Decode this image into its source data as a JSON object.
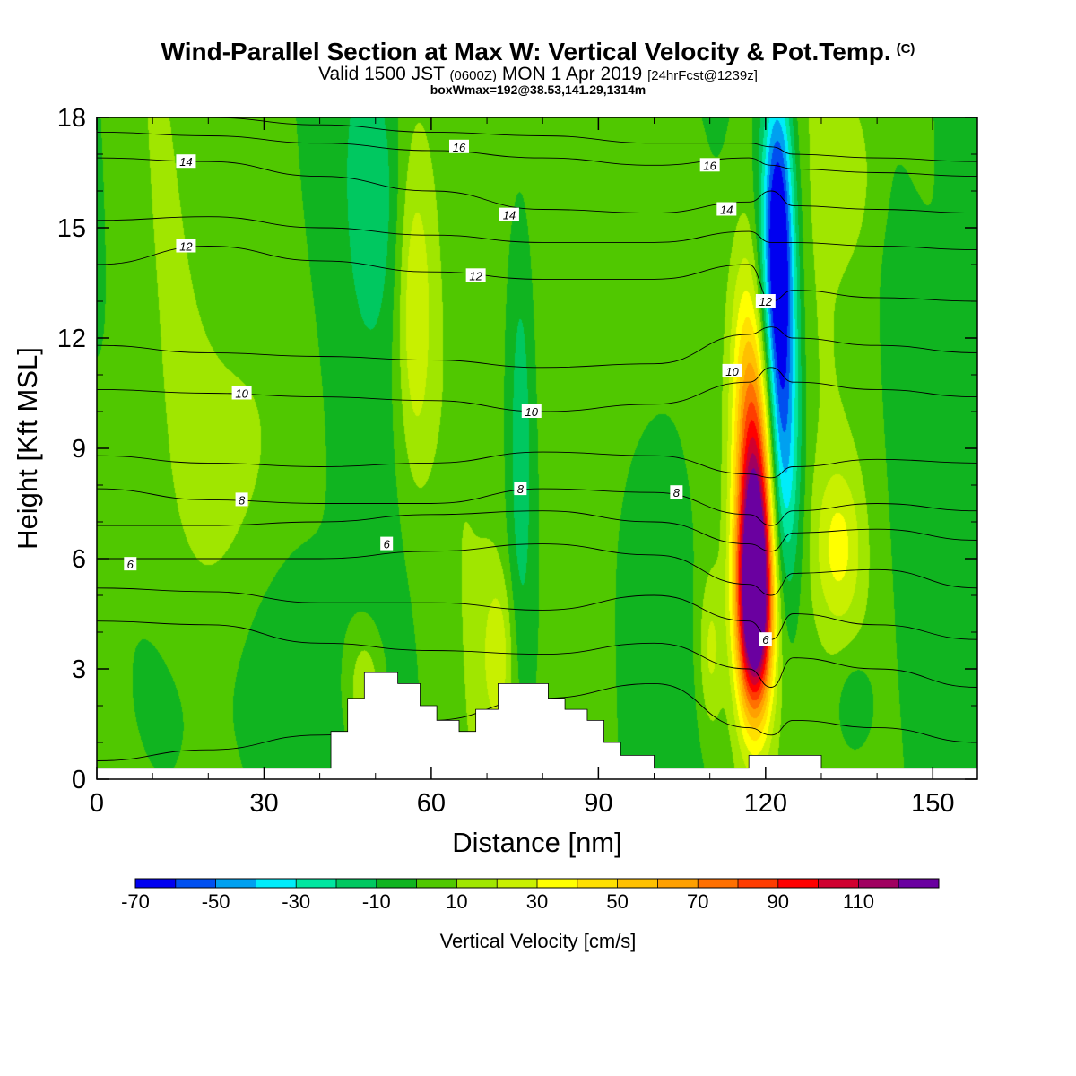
{
  "header": {
    "title": "Wind-Parallel Section at Max W: Vertical Velocity & Pot.Temp.",
    "copyright_mark": "(C)",
    "subtitle_main": "Valid 1500 JST",
    "subtitle_utc": "(0600Z)",
    "subtitle_date": "MON 1 Apr 2019",
    "subtitle_fcst": "[24hrFcst@1239z]",
    "subtitle2": "boxWmax=192@38.53,141.29,1314m"
  },
  "chart_data": {
    "type": "heatmap",
    "title": "Wind-Parallel Section at Max W: Vertical Velocity & Pot.Temp.",
    "xlabel": "Distance [nm]",
    "ylabel": "Height [Kft MSL]",
    "xlim": [
      0,
      158
    ],
    "ylim": [
      0,
      18
    ],
    "xticks": [
      0,
      30,
      60,
      90,
      120,
      150
    ],
    "yticks": [
      0,
      3,
      6,
      9,
      12,
      15,
      18
    ],
    "colorbar": {
      "title": "Vertical Velocity [cm/s]",
      "tick_labels": [
        "-70",
        "-50",
        "-30",
        "-10",
        "10",
        "30",
        "50",
        "70",
        "90",
        "110"
      ],
      "boundaries": [
        -70,
        -60,
        -50,
        -40,
        -30,
        -20,
        -10,
        0,
        10,
        20,
        30,
        40,
        50,
        60,
        70,
        80,
        90,
        100,
        110,
        120
      ],
      "colors": [
        "#0000f0",
        "#0050f0",
        "#00a0f0",
        "#00ecfa",
        "#00e6a0",
        "#00c860",
        "#10b420",
        "#50c800",
        "#a0e600",
        "#c8f000",
        "#ffff00",
        "#ffe000",
        "#ffc000",
        "#ffa000",
        "#ff7000",
        "#ff3c00",
        "#ff0000",
        "#d00030",
        "#a00060",
        "#6a00a0"
      ]
    },
    "contour_labels": [
      {
        "value": "14",
        "x": 16,
        "y": 16.8
      },
      {
        "value": "16",
        "x": 65,
        "y": 17.2
      },
      {
        "value": "16",
        "x": 110,
        "y": 16.7
      },
      {
        "value": "14",
        "x": 74,
        "y": 15.35
      },
      {
        "value": "14",
        "x": 113,
        "y": 15.5
      },
      {
        "value": "12",
        "x": 16,
        "y": 14.5
      },
      {
        "value": "12",
        "x": 68,
        "y": 13.7
      },
      {
        "value": "12",
        "x": 120,
        "y": 13.0
      },
      {
        "value": "10",
        "x": 26,
        "y": 10.5
      },
      {
        "value": "10",
        "x": 78,
        "y": 10.0
      },
      {
        "value": "10",
        "x": 114,
        "y": 11.1
      },
      {
        "value": "8",
        "x": 26,
        "y": 7.6
      },
      {
        "value": "8",
        "x": 76,
        "y": 7.9
      },
      {
        "value": "8",
        "x": 104,
        "y": 7.8
      },
      {
        "value": "6",
        "x": 6,
        "y": 5.85
      },
      {
        "value": "6",
        "x": 52,
        "y": 6.4
      },
      {
        "value": "6",
        "x": 120,
        "y": 3.8
      }
    ],
    "terrain_profile": {
      "x": [
        0,
        42,
        42,
        45,
        45,
        48,
        48,
        54,
        54,
        58,
        58,
        61,
        61,
        65,
        65,
        68,
        68,
        72,
        72,
        81,
        81,
        84,
        84,
        88,
        88,
        91,
        91,
        94,
        94,
        100,
        100,
        117,
        117,
        130,
        130,
        158
      ],
      "y": [
        0.3,
        0.3,
        1.3,
        1.3,
        2.2,
        2.2,
        2.9,
        2.9,
        2.6,
        2.6,
        2.0,
        2.0,
        1.6,
        1.6,
        1.3,
        1.3,
        1.9,
        1.9,
        2.6,
        2.6,
        2.2,
        2.2,
        1.9,
        1.9,
        1.6,
        1.6,
        1.0,
        1.0,
        0.65,
        0.65,
        0.3,
        0.3,
        0.65,
        0.65,
        0.3,
        0.3
      ]
    },
    "theta_contours": [
      {
        "value": 2,
        "x": [
          0,
          20,
          40,
          60,
          80,
          100,
          117,
          121,
          125,
          140,
          158
        ],
        "y": [
          0.5,
          0.8,
          1.2,
          1.6,
          2.2,
          2.6,
          1.4,
          1.2,
          1.6,
          1.4,
          1.0
        ]
      },
      {
        "value": 4,
        "x": [
          0,
          20,
          40,
          60,
          80,
          100,
          117,
          121,
          125,
          140,
          158
        ],
        "y": [
          4.3,
          4.2,
          3.7,
          3.5,
          3.4,
          3.7,
          3.0,
          2.5,
          3.3,
          3.0,
          2.5
        ]
      },
      {
        "value": 5,
        "x": [
          0,
          20,
          40,
          60,
          80,
          100,
          117,
          121,
          125,
          140,
          158
        ],
        "y": [
          5.2,
          5.1,
          4.8,
          4.8,
          4.6,
          5.0,
          4.3,
          3.8,
          4.5,
          4.2,
          3.8
        ]
      },
      {
        "value": 6,
        "x": [
          0,
          20,
          40,
          60,
          80,
          100,
          117,
          121,
          125,
          140,
          158
        ],
        "y": [
          6.0,
          6.0,
          6.0,
          6.2,
          6.4,
          6.1,
          5.3,
          5.0,
          5.6,
          5.7,
          5.2
        ]
      },
      {
        "value": 7,
        "x": [
          0,
          20,
          40,
          60,
          80,
          100,
          117,
          121,
          125,
          140,
          158
        ],
        "y": [
          6.9,
          6.9,
          7.0,
          7.2,
          7.3,
          7.0,
          6.4,
          6.2,
          6.7,
          6.8,
          6.5
        ]
      },
      {
        "value": 8,
        "x": [
          0,
          20,
          40,
          60,
          80,
          100,
          117,
          121,
          125,
          140,
          158
        ],
        "y": [
          7.9,
          7.6,
          7.5,
          7.5,
          7.9,
          7.8,
          7.2,
          6.9,
          7.3,
          7.5,
          7.3
        ]
      },
      {
        "value": 9,
        "x": [
          0,
          20,
          40,
          60,
          80,
          100,
          117,
          121,
          125,
          140,
          158
        ],
        "y": [
          8.8,
          8.6,
          8.5,
          8.6,
          8.9,
          8.8,
          8.3,
          8.2,
          8.5,
          8.7,
          8.6
        ]
      },
      {
        "value": 10,
        "x": [
          0,
          20,
          40,
          60,
          80,
          100,
          117,
          121,
          125,
          140,
          158
        ],
        "y": [
          10.6,
          10.5,
          10.4,
          10.3,
          10.0,
          10.2,
          10.8,
          11.2,
          10.8,
          10.6,
          10.4
        ]
      },
      {
        "value": 11,
        "x": [
          0,
          20,
          40,
          60,
          80,
          100,
          117,
          121,
          125,
          140,
          158
        ],
        "y": [
          11.8,
          11.6,
          11.5,
          11.4,
          11.2,
          11.3,
          12.1,
          12.3,
          12.0,
          11.8,
          11.6
        ]
      },
      {
        "value": 12,
        "x": [
          0,
          20,
          40,
          60,
          80,
          100,
          117,
          121,
          125,
          140,
          158
        ],
        "y": [
          14.0,
          14.5,
          14.1,
          13.8,
          13.6,
          13.6,
          14.0,
          13.0,
          13.3,
          13.1,
          13.0
        ]
      },
      {
        "value": 13,
        "x": [
          0,
          20,
          40,
          60,
          80,
          100,
          117,
          121,
          125,
          140,
          158
        ],
        "y": [
          15.2,
          15.3,
          15.0,
          14.8,
          14.6,
          14.6,
          14.9,
          14.6,
          14.6,
          14.5,
          14.4
        ]
      },
      {
        "value": 14,
        "x": [
          0,
          20,
          40,
          60,
          80,
          100,
          117,
          121,
          125,
          140,
          158
        ],
        "y": [
          16.9,
          16.8,
          16.4,
          16.0,
          15.5,
          15.4,
          15.7,
          16.0,
          15.6,
          15.5,
          15.4
        ]
      },
      {
        "value": 15,
        "x": [
          0,
          20,
          40,
          60,
          80,
          100,
          117,
          121,
          125,
          140,
          158
        ],
        "y": [
          17.6,
          17.5,
          17.3,
          17.1,
          16.9,
          16.7,
          16.9,
          16.7,
          16.6,
          16.5,
          16.4
        ]
      },
      {
        "value": 16,
        "x": [
          0,
          20,
          40,
          60,
          80,
          100,
          117,
          121,
          125,
          140,
          158
        ],
        "y": [
          18.0,
          18.0,
          17.8,
          17.6,
          17.5,
          17.3,
          17.3,
          17.2,
          17.0,
          16.9,
          16.8
        ]
      }
    ],
    "velocity_features": [
      {
        "kind": "updraft",
        "x": 118,
        "y": 4.5,
        "value": 110,
        "sx": 2.2,
        "sy": 2.0
      },
      {
        "kind": "updraft",
        "x": 118,
        "y": 6.5,
        "value": 80,
        "sx": 2.4,
        "sy": 2.5
      },
      {
        "kind": "updraft",
        "x": 118,
        "y": 9.5,
        "value": 45,
        "sx": 2.4,
        "sy": 2.5
      },
      {
        "kind": "updraft",
        "x": 116,
        "y": 12.0,
        "value": 20,
        "sx": 2.2,
        "sy": 2.5
      },
      {
        "kind": "downdraft",
        "x": 122,
        "y": 15.0,
        "value": -70,
        "sx": 2.0,
        "sy": 3.0
      },
      {
        "kind": "downdraft",
        "x": 123,
        "y": 11.0,
        "value": -40,
        "sx": 2.2,
        "sy": 3.5
      },
      {
        "kind": "downdraft",
        "x": 123,
        "y": 8.0,
        "value": -20,
        "sx": 2.2,
        "sy": 2.5
      },
      {
        "kind": "updraft",
        "x": 57,
        "y": 12.5,
        "value": 25,
        "sx": 2.2,
        "sy": 3.0
      },
      {
        "kind": "updraft",
        "x": 95,
        "y": 14.0,
        "value": 15,
        "sx": 6.0,
        "sy": 4.0
      },
      {
        "kind": "updraft",
        "x": 133,
        "y": 6.3,
        "value": 25,
        "sx": 3.0,
        "sy": 1.5
      },
      {
        "kind": "updraft",
        "x": 135,
        "y": 16.5,
        "value": 15,
        "sx": 3.0,
        "sy": 1.5
      },
      {
        "kind": "updraft",
        "x": 48,
        "y": 2.5,
        "value": 20,
        "sx": 2.0,
        "sy": 1.0
      },
      {
        "kind": "updraft",
        "x": 72,
        "y": 3.5,
        "value": 20,
        "sx": 2.0,
        "sy": 1.5
      },
      {
        "kind": "updraft",
        "x": 110,
        "y": 3.5,
        "value": 20,
        "sx": 1.5,
        "sy": 1.5
      },
      {
        "kind": "updraft",
        "x": 28,
        "y": 9.0,
        "value": 12,
        "sx": 6.0,
        "sy": 3.0
      },
      {
        "kind": "downdraft",
        "x": 76,
        "y": 9.0,
        "value": -20,
        "sx": 1.8,
        "sy": 5.0
      },
      {
        "kind": "downdraft",
        "x": 50,
        "y": 16.0,
        "value": -15,
        "sx": 3.0,
        "sy": 2.5
      },
      {
        "kind": "downdraft",
        "x": 20,
        "y": 2.0,
        "value": -8,
        "sx": 12.0,
        "sy": 2.5
      },
      {
        "kind": "downdraft",
        "x": 136,
        "y": 2.0,
        "value": -15,
        "sx": 2.5,
        "sy": 1.0
      }
    ]
  }
}
